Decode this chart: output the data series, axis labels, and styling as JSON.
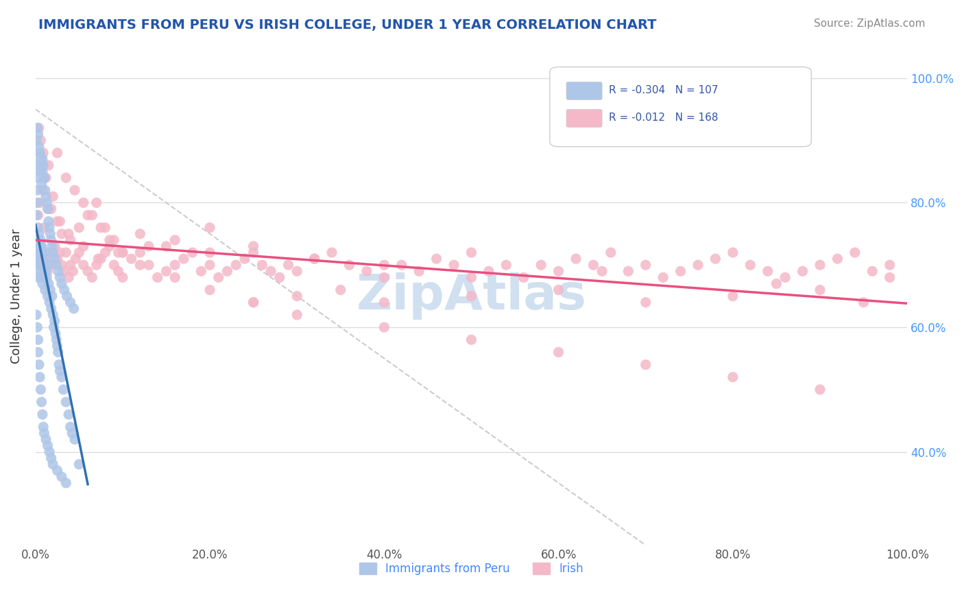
{
  "title": "IMMIGRANTS FROM PERU VS IRISH COLLEGE, UNDER 1 YEAR CORRELATION CHART",
  "source_text": "Source: ZipAtlas.com",
  "xlabel": "",
  "ylabel": "College, Under 1 year",
  "legend_labels": [
    "Immigrants from Peru",
    "Irish"
  ],
  "legend_r": [
    -0.304,
    -0.012
  ],
  "legend_n": [
    107,
    168
  ],
  "blue_color": "#aec6e8",
  "pink_color": "#f4b8c8",
  "blue_line_color": "#3070b0",
  "pink_line_color": "#e85080",
  "title_color": "#2255aa",
  "watermark_text": "ZipAtlas",
  "watermark_color": "#d0e0f0",
  "background_color": "#ffffff",
  "xlim": [
    0.0,
    1.0
  ],
  "ylim": [
    0.0,
    1.0
  ],
  "xtick_labels": [
    "0.0%",
    "20.0%",
    "40.0%",
    "60.0%",
    "80.0%",
    "100.0%"
  ],
  "ytick_labels_right": [
    "40.0%",
    "60.0%",
    "80.0%",
    "100.0%"
  ],
  "blue_scatter_x": [
    0.001,
    0.001,
    0.002,
    0.002,
    0.003,
    0.003,
    0.003,
    0.004,
    0.004,
    0.005,
    0.005,
    0.006,
    0.006,
    0.006,
    0.007,
    0.007,
    0.007,
    0.008,
    0.008,
    0.009,
    0.009,
    0.01,
    0.01,
    0.011,
    0.011,
    0.012,
    0.012,
    0.013,
    0.014,
    0.015,
    0.015,
    0.016,
    0.017,
    0.018,
    0.019,
    0.02,
    0.021,
    0.022,
    0.023,
    0.024,
    0.025,
    0.026,
    0.027,
    0.028,
    0.03,
    0.032,
    0.035,
    0.038,
    0.04,
    0.042,
    0.045,
    0.05,
    0.002,
    0.003,
    0.004,
    0.005,
    0.006,
    0.007,
    0.008,
    0.009,
    0.01,
    0.011,
    0.012,
    0.013,
    0.014,
    0.015,
    0.016,
    0.017,
    0.018,
    0.019,
    0.02,
    0.022,
    0.024,
    0.026,
    0.028,
    0.03,
    0.033,
    0.036,
    0.04,
    0.044,
    0.001,
    0.002,
    0.003,
    0.003,
    0.004,
    0.005,
    0.006,
    0.007,
    0.008,
    0.009,
    0.01,
    0.012,
    0.014,
    0.016,
    0.018,
    0.02,
    0.025,
    0.03,
    0.035,
    0.001,
    0.002,
    0.003,
    0.004,
    0.005,
    0.006,
    0.007,
    0.008,
    0.01
  ],
  "blue_scatter_y": [
    0.72,
    0.78,
    0.8,
    0.74,
    0.76,
    0.68,
    0.7,
    0.75,
    0.72,
    0.73,
    0.7,
    0.71,
    0.69,
    0.74,
    0.72,
    0.68,
    0.73,
    0.7,
    0.67,
    0.69,
    0.72,
    0.68,
    0.71,
    0.7,
    0.66,
    0.69,
    0.72,
    0.68,
    0.65,
    0.67,
    0.7,
    0.64,
    0.66,
    0.63,
    0.65,
    0.62,
    0.6,
    0.61,
    0.59,
    0.58,
    0.57,
    0.56,
    0.54,
    0.53,
    0.52,
    0.5,
    0.48,
    0.46,
    0.44,
    0.43,
    0.42,
    0.38,
    0.82,
    0.84,
    0.86,
    0.88,
    0.85,
    0.83,
    0.87,
    0.86,
    0.84,
    0.82,
    0.81,
    0.8,
    0.79,
    0.77,
    0.76,
    0.75,
    0.74,
    0.73,
    0.72,
    0.71,
    0.7,
    0.69,
    0.68,
    0.67,
    0.66,
    0.65,
    0.64,
    0.63,
    0.62,
    0.6,
    0.58,
    0.56,
    0.54,
    0.52,
    0.5,
    0.48,
    0.46,
    0.44,
    0.43,
    0.42,
    0.41,
    0.4,
    0.39,
    0.38,
    0.37,
    0.36,
    0.35,
    0.9,
    0.92,
    0.91,
    0.89,
    0.88,
    0.87,
    0.86,
    0.85,
    0.84
  ],
  "pink_scatter_x": [
    0.001,
    0.002,
    0.003,
    0.004,
    0.005,
    0.006,
    0.007,
    0.008,
    0.009,
    0.01,
    0.012,
    0.014,
    0.016,
    0.018,
    0.02,
    0.022,
    0.025,
    0.028,
    0.03,
    0.032,
    0.035,
    0.038,
    0.04,
    0.043,
    0.046,
    0.05,
    0.055,
    0.06,
    0.065,
    0.07,
    0.075,
    0.08,
    0.085,
    0.09,
    0.095,
    0.1,
    0.11,
    0.12,
    0.13,
    0.14,
    0.15,
    0.16,
    0.17,
    0.18,
    0.19,
    0.2,
    0.21,
    0.22,
    0.23,
    0.24,
    0.25,
    0.26,
    0.27,
    0.28,
    0.29,
    0.3,
    0.32,
    0.34,
    0.36,
    0.38,
    0.4,
    0.42,
    0.44,
    0.46,
    0.48,
    0.5,
    0.52,
    0.54,
    0.56,
    0.58,
    0.6,
    0.62,
    0.64,
    0.66,
    0.68,
    0.7,
    0.72,
    0.74,
    0.76,
    0.78,
    0.8,
    0.82,
    0.84,
    0.86,
    0.88,
    0.9,
    0.92,
    0.94,
    0.96,
    0.98,
    0.003,
    0.005,
    0.008,
    0.01,
    0.015,
    0.02,
    0.025,
    0.03,
    0.04,
    0.05,
    0.06,
    0.07,
    0.08,
    0.09,
    0.1,
    0.12,
    0.15,
    0.2,
    0.25,
    0.3,
    0.35,
    0.4,
    0.5,
    0.6,
    0.7,
    0.8,
    0.9,
    0.95,
    0.015,
    0.025,
    0.035,
    0.045,
    0.055,
    0.065,
    0.075,
    0.085,
    0.095,
    0.12,
    0.16,
    0.2,
    0.25,
    0.3,
    0.4,
    0.5,
    0.6,
    0.7,
    0.8,
    0.9,
    0.004,
    0.006,
    0.009,
    0.012,
    0.018,
    0.028,
    0.038,
    0.055,
    0.072,
    0.1,
    0.13,
    0.16,
    0.2,
    0.25,
    0.32,
    0.4,
    0.5,
    0.65,
    0.85,
    0.98
  ],
  "pink_scatter_y": [
    0.72,
    0.73,
    0.74,
    0.71,
    0.72,
    0.73,
    0.71,
    0.7,
    0.72,
    0.68,
    0.7,
    0.69,
    0.71,
    0.7,
    0.72,
    0.73,
    0.71,
    0.72,
    0.7,
    0.69,
    0.72,
    0.68,
    0.7,
    0.69,
    0.71,
    0.72,
    0.7,
    0.69,
    0.68,
    0.7,
    0.71,
    0.72,
    0.73,
    0.7,
    0.69,
    0.68,
    0.71,
    0.72,
    0.7,
    0.68,
    0.69,
    0.7,
    0.71,
    0.72,
    0.69,
    0.7,
    0.68,
    0.69,
    0.7,
    0.71,
    0.72,
    0.7,
    0.69,
    0.68,
    0.7,
    0.69,
    0.71,
    0.72,
    0.7,
    0.69,
    0.68,
    0.7,
    0.69,
    0.71,
    0.7,
    0.72,
    0.69,
    0.7,
    0.68,
    0.7,
    0.69,
    0.71,
    0.7,
    0.72,
    0.69,
    0.7,
    0.68,
    0.69,
    0.7,
    0.71,
    0.72,
    0.7,
    0.69,
    0.68,
    0.69,
    0.7,
    0.71,
    0.72,
    0.69,
    0.7,
    0.78,
    0.8,
    0.82,
    0.76,
    0.79,
    0.81,
    0.77,
    0.75,
    0.74,
    0.76,
    0.78,
    0.8,
    0.76,
    0.74,
    0.72,
    0.75,
    0.73,
    0.76,
    0.64,
    0.65,
    0.66,
    0.64,
    0.65,
    0.66,
    0.64,
    0.65,
    0.66,
    0.64,
    0.86,
    0.88,
    0.84,
    0.82,
    0.8,
    0.78,
    0.76,
    0.74,
    0.72,
    0.7,
    0.68,
    0.66,
    0.64,
    0.62,
    0.6,
    0.58,
    0.56,
    0.54,
    0.52,
    0.5,
    0.92,
    0.9,
    0.88,
    0.84,
    0.79,
    0.77,
    0.75,
    0.73,
    0.71,
    0.72,
    0.73,
    0.74,
    0.72,
    0.73,
    0.71,
    0.7,
    0.68,
    0.69,
    0.67,
    0.68
  ]
}
